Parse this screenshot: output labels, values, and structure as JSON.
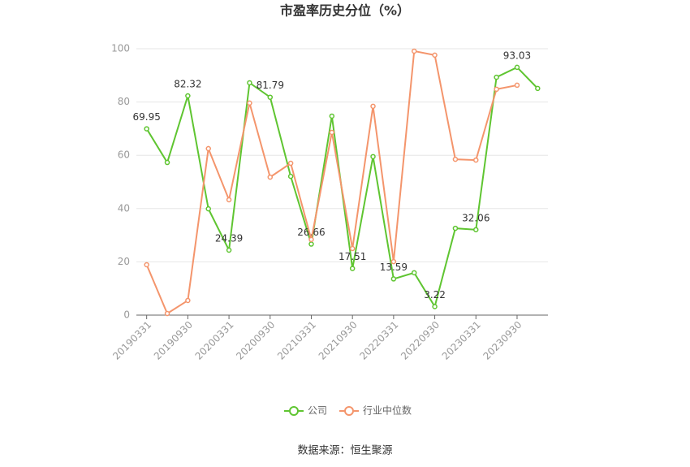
{
  "chart_data": {
    "type": "line",
    "title": "市盈率历史分位（%）",
    "source": "数据来源：恒生聚源",
    "categories": [
      "20190331",
      null,
      "20190930",
      null,
      "20200331",
      null,
      "20200930",
      null,
      "20210331",
      null,
      "20210930",
      null,
      "20220331",
      null,
      "20220930",
      null,
      "20230331",
      null,
      "20230930",
      null
    ],
    "series": [
      {
        "name": "公司",
        "color": "#5fc531",
        "values": [
          69.95,
          57.3,
          82.32,
          39.9,
          24.39,
          87.2,
          81.79,
          52.1,
          26.66,
          74.7,
          17.51,
          59.5,
          13.59,
          15.9,
          3.22,
          32.6,
          32.06,
          89.3,
          93.03,
          85.1
        ]
      },
      {
        "name": "行业中位数",
        "color": "#f4956c",
        "values": [
          18.9,
          0.6,
          5.5,
          62.5,
          43.3,
          79.6,
          51.8,
          57.0,
          28.4,
          68.6,
          25.0,
          78.4,
          20.1,
          99.1,
          97.6,
          58.5,
          58.2,
          84.8,
          86.3,
          null
        ]
      }
    ],
    "ylim": [
      0,
      100
    ],
    "yticks": [
      0,
      20,
      40,
      60,
      80,
      100
    ],
    "grid": true
  }
}
